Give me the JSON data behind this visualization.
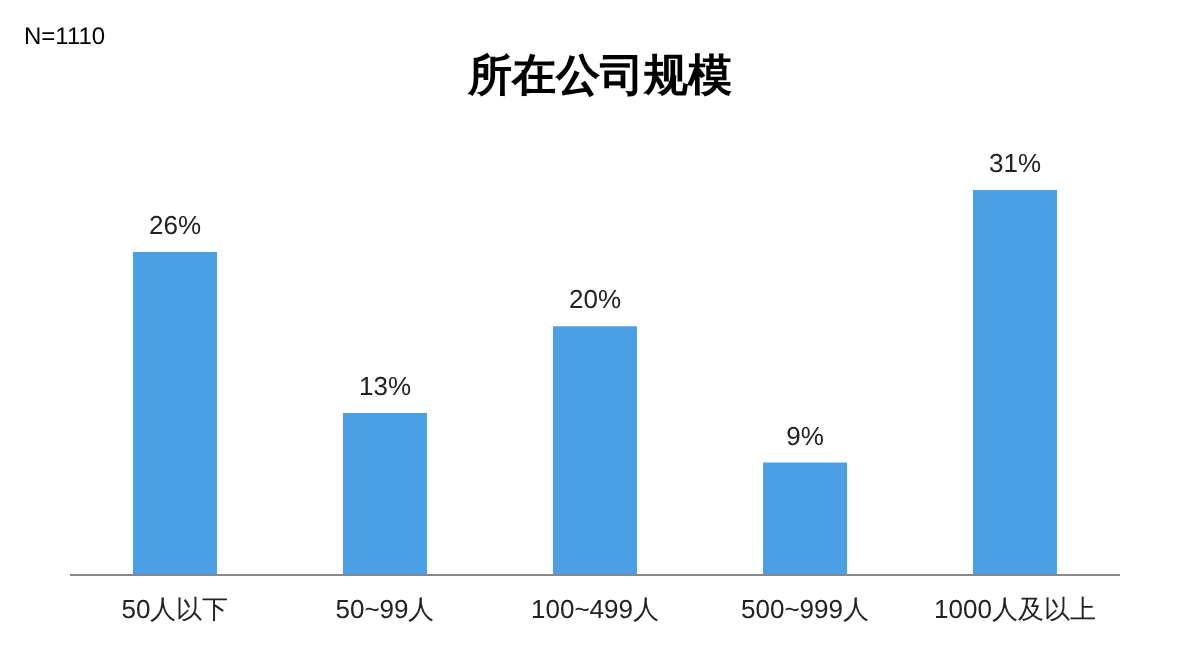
{
  "chart_data": {
    "type": "bar",
    "title": "所在公司规模",
    "annotations": [
      "N=1110"
    ],
    "categories": [
      "50人以下",
      "50~99人",
      "100~499人",
      "500~999人",
      "1000人及以上"
    ],
    "values": [
      26,
      13,
      20,
      9,
      31
    ],
    "value_labels": [
      "26%",
      "13%",
      "20%",
      "9%",
      "31%"
    ],
    "color": "#4a9fe5",
    "grid": false
  }
}
